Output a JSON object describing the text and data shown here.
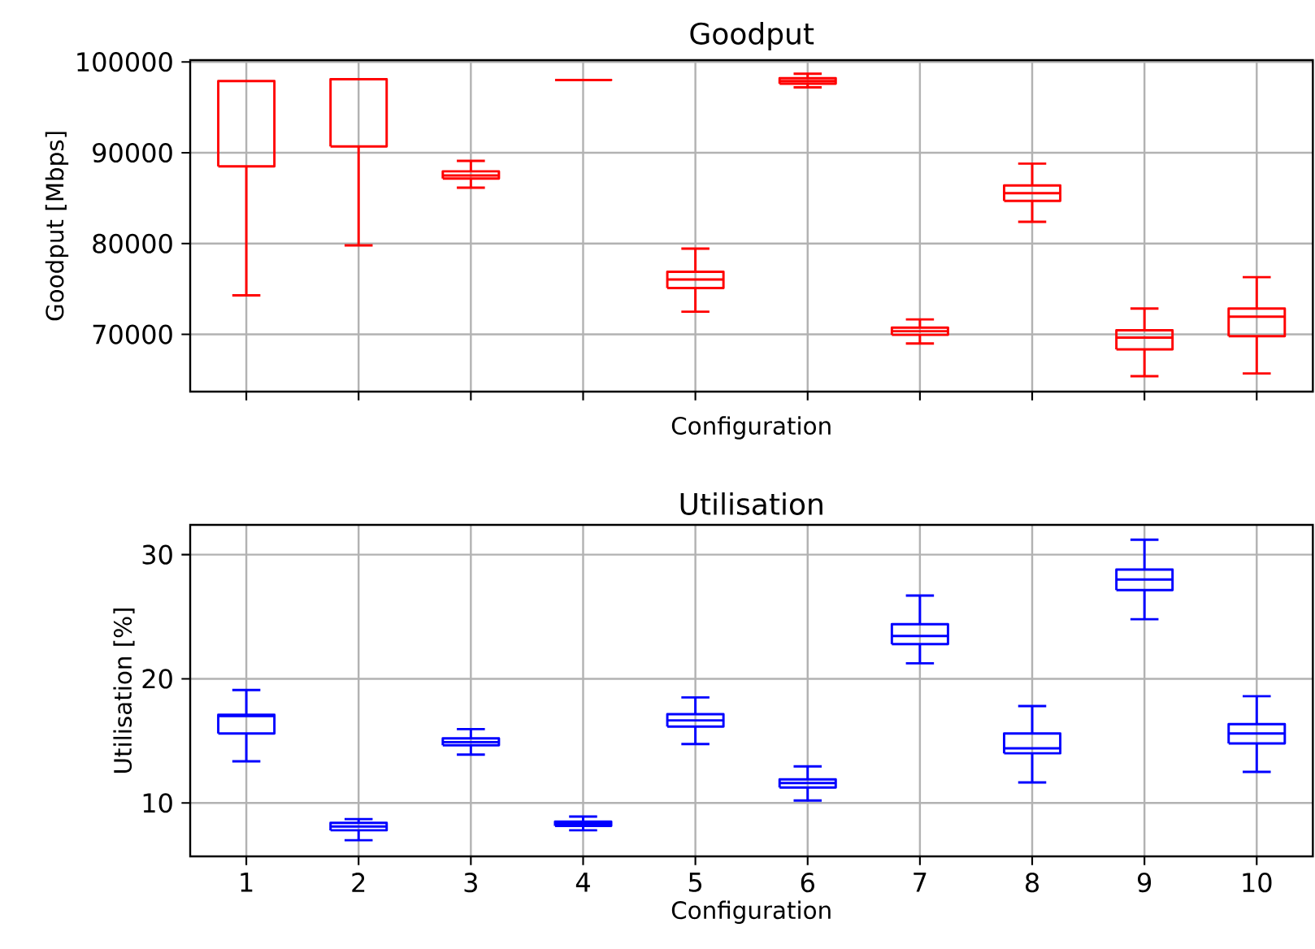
{
  "chart_data": [
    {
      "type": "box",
      "title": "Goodput",
      "xlabel": "Configuration",
      "ylabel": "Goodput [Mbps]",
      "categories": [
        "1",
        "2",
        "3",
        "4",
        "5",
        "6",
        "7",
        "8",
        "9",
        "10"
      ],
      "series": [
        {
          "color": "#ff0000",
          "boxes": [
            {
              "low": 74300,
              "q1": 88500,
              "median": 97900,
              "q3": 97900,
              "high": 97900
            },
            {
              "low": 79800,
              "q1": 90700,
              "median": 98100,
              "q3": 98100,
              "high": 98100
            },
            {
              "low": 86150,
              "q1": 87150,
              "median": 87500,
              "q3": 87950,
              "high": 89100
            },
            {
              "low": 98000,
              "q1": 98000,
              "median": 98000,
              "q3": 98000,
              "high": 98000
            },
            {
              "low": 72500,
              "q1": 75100,
              "median": 76050,
              "q3": 76900,
              "high": 79450
            },
            {
              "low": 97200,
              "q1": 97600,
              "median": 97900,
              "q3": 98200,
              "high": 98700
            },
            {
              "low": 69000,
              "q1": 69950,
              "median": 70350,
              "q3": 70750,
              "high": 71650
            },
            {
              "low": 82400,
              "q1": 84700,
              "median": 85550,
              "q3": 86400,
              "high": 88800
            },
            {
              "low": 65400,
              "q1": 68350,
              "median": 69650,
              "q3": 70450,
              "high": 72850
            },
            {
              "low": 65700,
              "q1": 69800,
              "median": 71950,
              "q3": 72850,
              "high": 76300
            }
          ]
        }
      ],
      "ylim": [
        63700,
        100200
      ],
      "yticks": [
        70000,
        80000,
        90000,
        100000
      ],
      "grid": true,
      "tick_labels": "y"
    },
    {
      "type": "box",
      "title": "Utilisation",
      "xlabel": "Configuration",
      "ylabel": "Utilisation [%]",
      "categories": [
        "1",
        "2",
        "3",
        "4",
        "5",
        "6",
        "7",
        "8",
        "9",
        "10"
      ],
      "series": [
        {
          "color": "#0000ff",
          "boxes": [
            {
              "low": 13.35,
              "q1": 15.6,
              "median": 17.0,
              "q3": 17.1,
              "high": 19.1
            },
            {
              "low": 7.0,
              "q1": 7.8,
              "median": 8.1,
              "q3": 8.4,
              "high": 8.7
            },
            {
              "low": 13.9,
              "q1": 14.65,
              "median": 14.9,
              "q3": 15.2,
              "high": 15.95
            },
            {
              "low": 7.8,
              "q1": 8.15,
              "median": 8.3,
              "q3": 8.5,
              "high": 8.9
            },
            {
              "low": 14.75,
              "q1": 16.15,
              "median": 16.65,
              "q3": 17.15,
              "high": 18.5
            },
            {
              "low": 10.2,
              "q1": 11.25,
              "median": 11.6,
              "q3": 11.9,
              "high": 12.95
            },
            {
              "low": 21.25,
              "q1": 22.8,
              "median": 23.45,
              "q3": 24.4,
              "high": 26.7
            },
            {
              "low": 11.65,
              "q1": 14.0,
              "median": 14.4,
              "q3": 15.6,
              "high": 17.8
            },
            {
              "low": 24.8,
              "q1": 27.15,
              "median": 28.0,
              "q3": 28.8,
              "high": 31.2
            },
            {
              "low": 12.5,
              "q1": 14.8,
              "median": 15.6,
              "q3": 16.35,
              "high": 18.6
            }
          ]
        }
      ],
      "ylim": [
        5.7,
        32.4
      ],
      "yticks": [
        10,
        20,
        30
      ],
      "grid": true
    }
  ]
}
